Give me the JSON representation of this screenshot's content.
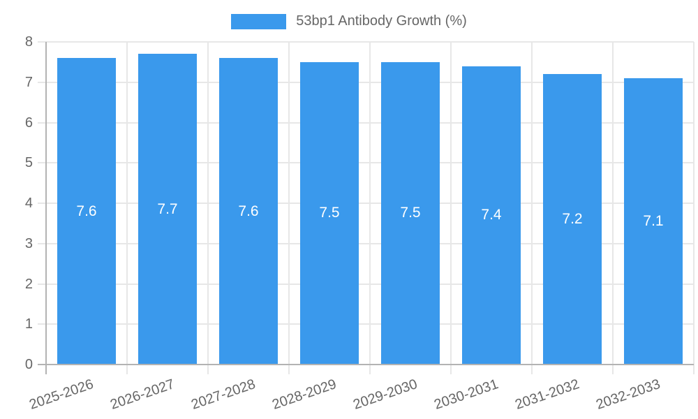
{
  "chart_data": {
    "type": "bar",
    "title": "53bp1 Antibody Growth (%)",
    "categories": [
      "2025-2026",
      "2026-2027",
      "2027-2028",
      "2028-2029",
      "2029-2030",
      "2030-2031",
      "2031-2032",
      "2032-2033"
    ],
    "values": [
      7.6,
      7.7,
      7.6,
      7.5,
      7.5,
      7.4,
      7.2,
      7.1
    ],
    "value_labels": [
      "7.6",
      "7.7",
      "7.6",
      "7.5",
      "7.5",
      "7.4",
      "7.2",
      "7.1"
    ],
    "xlabel": "",
    "ylabel": "",
    "ylim": [
      0,
      8
    ],
    "yticks": [
      0,
      1,
      2,
      3,
      4,
      5,
      6,
      7,
      8
    ],
    "grid": true,
    "legend_position": "top",
    "colors": {
      "bar": "#3A99EC",
      "grid": "#e7e7e7",
      "axis": "#b3b3b3",
      "tick_text": "#666666",
      "value_label": "#ffffff",
      "background": "#ffffff"
    }
  }
}
